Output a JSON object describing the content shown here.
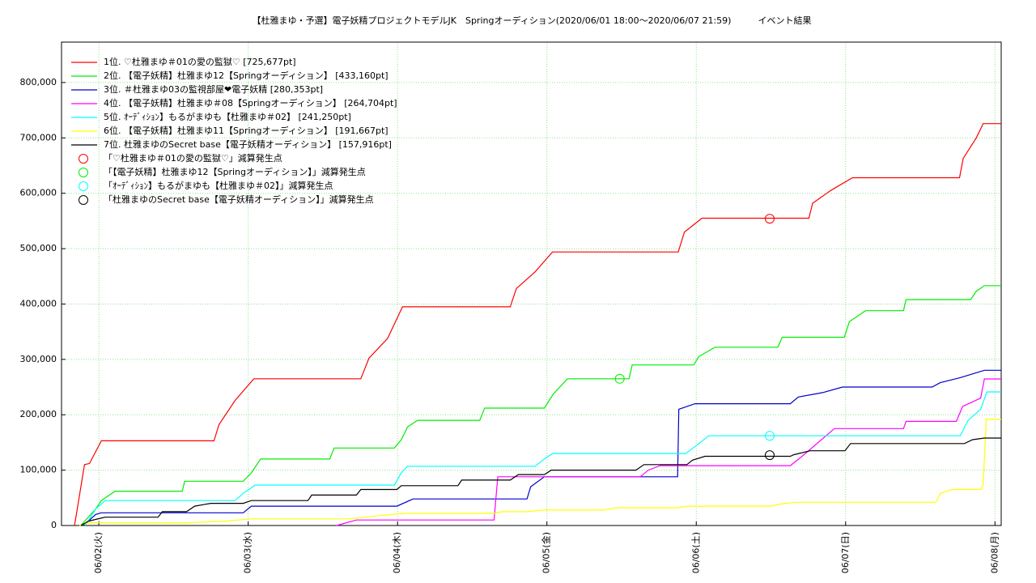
{
  "chart_data": {
    "type": "line",
    "title": "【杜雅まゆ・予選】電子妖精プロジェクトモデルJK　Springオーディション(2020/06/01 18:00～2020/06/07 21:59)　　　イベント結果",
    "xlim": [
      -6,
      145
    ],
    "xticks": [
      {
        "value": 0,
        "label": "06/02(火)"
      },
      {
        "value": 24,
        "label": "06/03(水)"
      },
      {
        "value": 48,
        "label": "06/04(木)"
      },
      {
        "value": 72,
        "label": "06/05(金)"
      },
      {
        "value": 96,
        "label": "06/06(土)"
      },
      {
        "value": 120,
        "label": "06/07(日)"
      },
      {
        "value": 144,
        "label": "06/08(月)"
      }
    ],
    "ylim": [
      0,
      873000
    ],
    "yticks": [
      0,
      {
        "value": 100000,
        "label": "100,000"
      },
      {
        "value": 200000,
        "label": "200,000"
      },
      {
        "value": 300000,
        "label": "300,000"
      },
      {
        "value": 400000,
        "label": "400,000"
      },
      {
        "value": 500000,
        "label": "500,000"
      },
      {
        "value": 600000,
        "label": "600,000"
      },
      {
        "value": 700000,
        "label": "700,000"
      },
      {
        "value": 800000,
        "label": "800,000"
      }
    ],
    "grid": true,
    "legend": "upper left",
    "series": [
      {
        "name": "1位. ♡杜雅まゆ＃01の愛の監獄♡ [725,677pt]",
        "color": "#ff0000",
        "x": [
          -3.9,
          -2.3,
          -1.5,
          0.4,
          18.5,
          19.3,
          21.9,
          24.9,
          42.1,
          43.4,
          46.4,
          48.8,
          66.1,
          67.1,
          70.1,
          72.9,
          93.1,
          94.1,
          96.9,
          114.1,
          114.7,
          117.6,
          121.1,
          138.3,
          138.9,
          141.0,
          142.1,
          145
        ],
        "values": [
          0,
          110000,
          112000,
          153000,
          153000,
          182000,
          226000,
          265000,
          265000,
          302000,
          338000,
          395000,
          395000,
          428000,
          458000,
          494000,
          494000,
          530000,
          555000,
          555000,
          582000,
          605000,
          628000,
          628000,
          663000,
          700000,
          725677,
          725677
        ]
      },
      {
        "name": "2位. 【電子妖精】杜雅まゆ12【Springオーディション】 [433,160pt]",
        "color": "#00ee00",
        "x": [
          -2.9,
          -0.5,
          0.4,
          2.6,
          13.4,
          13.8,
          23.2,
          24.5,
          26.0,
          37.1,
          37.8,
          47.5,
          48.6,
          49.6,
          51.2,
          61.2,
          62.0,
          71.6,
          73.0,
          75.3,
          85.2,
          85.7,
          95.6,
          96.4,
          99.0,
          109.1,
          109.8,
          119.8,
          120.6,
          123.2,
          129.3,
          129.7,
          140.1,
          141.0,
          142.3,
          145
        ],
        "values": [
          0,
          30000,
          45000,
          62000,
          62000,
          80000,
          80000,
          95000,
          120000,
          120000,
          140000,
          140000,
          155000,
          178000,
          190000,
          190000,
          212000,
          212000,
          237000,
          265000,
          265000,
          290000,
          290000,
          305000,
          322000,
          322000,
          340000,
          340000,
          368000,
          388000,
          388000,
          408000,
          408000,
          423000,
          433160,
          433160
        ]
      },
      {
        "name": "3位. ＃杜雅まゆ03の監視部屋❤電子妖精 [280,353pt]",
        "color": "#0000cc",
        "x": [
          -2.5,
          -0.5,
          0.4,
          23.2,
          24.5,
          47.9,
          50.5,
          68.8,
          69.4,
          71.6,
          93.0,
          93.2,
          95.8,
          111.1,
          112.4,
          116.3,
          119.5,
          133.9,
          135.2,
          138.4,
          142.3,
          145
        ],
        "values": [
          0,
          20000,
          23000,
          23000,
          35000,
          35000,
          48000,
          48000,
          70000,
          88000,
          88000,
          210000,
          220000,
          220000,
          232000,
          240000,
          250000,
          250000,
          258000,
          267000,
          280353,
          280353
        ]
      },
      {
        "name": "4位. 【電子妖精】杜雅まゆ＃08【Springオーディション】 [264,704pt]",
        "color": "#ff00ff",
        "x": [
          38.2,
          41.4,
          63.5,
          64.1,
          87.0,
          88.3,
          90.2,
          111.1,
          113.0,
          118.2,
          129.3,
          129.7,
          137.8,
          138.8,
          141.7,
          142.3,
          145
        ],
        "values": [
          0,
          10000,
          10000,
          88000,
          88000,
          100000,
          108000,
          108000,
          125000,
          175000,
          175000,
          188000,
          188000,
          215000,
          230000,
          264704,
          264704
        ]
      },
      {
        "name": "5位. ｵｰﾃﾞｨｼｮﾝ】もるがまゆも【杜雅まゆ＃02】 [241,250pt]",
        "color": "#00ffff",
        "x": [
          -2.2,
          -0.5,
          1.0,
          21.9,
          23.2,
          25.1,
          47.5,
          48.6,
          49.6,
          70.1,
          71.6,
          72.9,
          94.3,
          96.1,
          98.0,
          138.4,
          139.7,
          141.7,
          142.7,
          145
        ],
        "values": [
          0,
          30000,
          45000,
          45000,
          58000,
          73000,
          73000,
          95000,
          107000,
          107000,
          120000,
          130000,
          130000,
          145000,
          162000,
          162000,
          190000,
          210000,
          241250,
          241250
        ]
      },
      {
        "name": "6位. 【電子妖精】杜雅まゆ11【Springオーディション】 [191,667pt]",
        "color": "#ffff00",
        "x": [
          -3.1,
          -1.6,
          14.1,
          20.6,
          24.5,
          40.1,
          45.3,
          49.2,
          63.5,
          64.8,
          68.8,
          71.4,
          81.1,
          83.1,
          92.8,
          94.8,
          107.8,
          109.1,
          111.7,
          134.5,
          135.2,
          137.1,
          141.7,
          142.1,
          142.6,
          145
        ],
        "values": [
          0,
          5000,
          5000,
          8000,
          12000,
          12000,
          18000,
          22000,
          22000,
          25000,
          25000,
          28000,
          28000,
          32000,
          32000,
          35000,
          35000,
          38000,
          42000,
          42000,
          58000,
          65000,
          65000,
          72000,
          191667,
          191667
        ]
      },
      {
        "name": "7位. 杜雅まゆのSecret base【電子妖精オーディション】 [157,916pt]",
        "color": "#000000",
        "x": [
          -2.9,
          -1.6,
          1.0,
          9.5,
          10.2,
          14.1,
          15.4,
          18.0,
          23.2,
          24.5,
          33.6,
          34.2,
          41.4,
          42.1,
          47.9,
          48.6,
          57.7,
          58.3,
          66.1,
          67.4,
          71.6,
          72.7,
          86.3,
          87.6,
          94.5,
          95.4,
          97.4,
          111.1,
          111.7,
          114.3,
          119.9,
          120.8,
          139.1,
          140.4,
          142.3,
          145
        ],
        "values": [
          0,
          8000,
          15000,
          15000,
          25000,
          25000,
          35000,
          40000,
          40000,
          45000,
          45000,
          55000,
          55000,
          65000,
          65000,
          72000,
          72000,
          82000,
          82000,
          92000,
          92000,
          100000,
          100000,
          110000,
          110000,
          118000,
          125000,
          125000,
          128000,
          135000,
          135000,
          148000,
          148000,
          155000,
          157916,
          157916
        ]
      }
    ],
    "markers": [
      {
        "name": "「♡杜雅まゆ＃01の愛の監獄♡」減算発生点",
        "color": "#ff0000",
        "x": 107.8,
        "y": 554000
      },
      {
        "name": "「【電子妖精】杜雅まゆ12【Springオーディション】」減算発生点",
        "color": "#00ee00",
        "x": 83.7,
        "y": 265000
      },
      {
        "name": "「ｵｰﾃﾞｨｼｮﾝ】もるがまゆも【杜雅まゆ＃02】」減算発生点",
        "color": "#00ffff",
        "x": 107.8,
        "y": 162000
      },
      {
        "name": "「杜雅まゆのSecret base【電子妖精オーディション】」減算発生点",
        "color": "#000000",
        "x": 107.8,
        "y": 127000
      }
    ]
  }
}
